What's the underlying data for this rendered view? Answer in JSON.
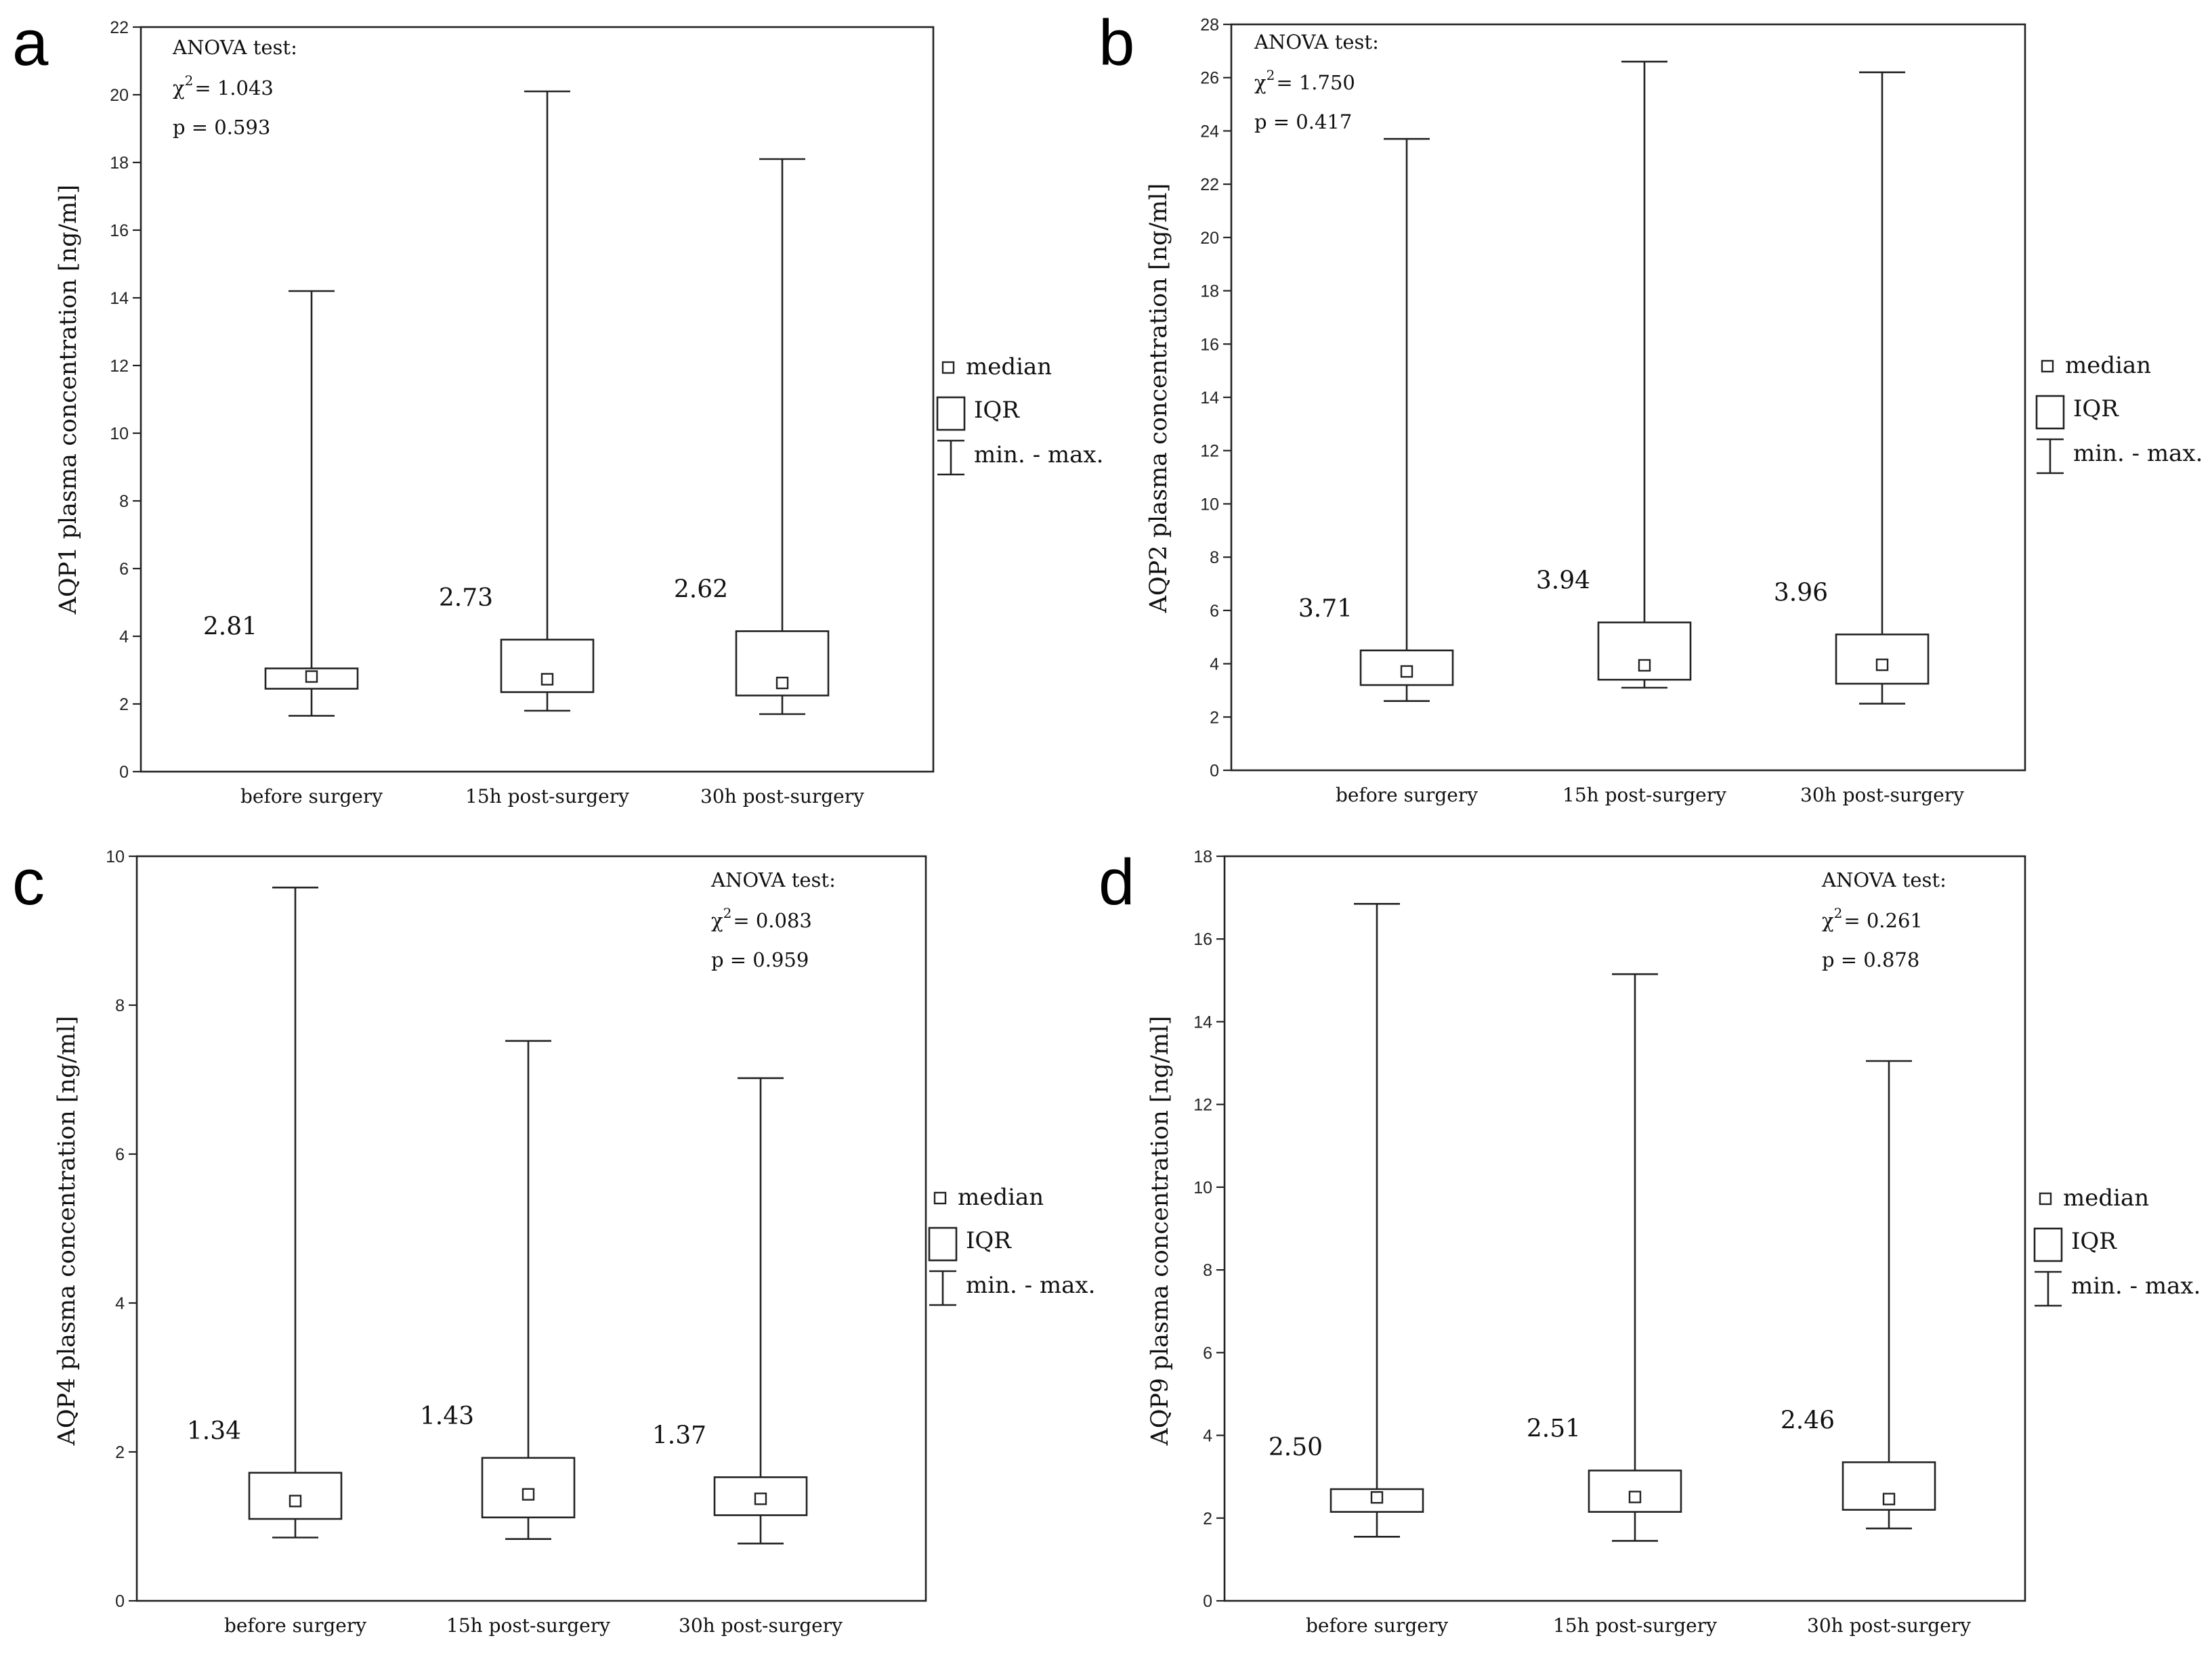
{
  "chart_data": [
    {
      "type": "boxplot",
      "panel": "a",
      "ylabel": "AQP1 plasma concentration [ng/ml]",
      "ylim": [
        0,
        22
      ],
      "yticks": [
        0,
        2,
        4,
        6,
        8,
        10,
        12,
        14,
        16,
        18,
        20,
        22
      ],
      "yticklabels": [
        "0",
        "2",
        "4",
        "6",
        "8",
        "10",
        "12",
        "14",
        "16",
        "18",
        "20",
        "22"
      ],
      "categories": [
        "before surgery",
        "15h post-surgery",
        "30h post-surgery"
      ],
      "stats": {
        "title": "ANOVA test:",
        "chi_prefix": "χ",
        "chi_sup": "2",
        "chi_value": "= 1.043",
        "p": "p = 0.593"
      },
      "median_labels": [
        "2.81",
        "2.73",
        "2.62"
      ],
      "series": [
        {
          "median": 2.81,
          "q1": 2.45,
          "q3": 3.05,
          "min": 1.65,
          "max": 14.2
        },
        {
          "median": 2.73,
          "q1": 2.35,
          "q3": 3.9,
          "min": 1.8,
          "max": 20.1
        },
        {
          "median": 2.62,
          "q1": 2.25,
          "q3": 4.15,
          "min": 1.7,
          "max": 18.1
        }
      ],
      "legend": {
        "median": "median",
        "iqr": "IQR",
        "range": "min. - max."
      }
    },
    {
      "type": "boxplot",
      "panel": "b",
      "ylabel": "AQP2 plasma concentration [ng/ml]",
      "ylim": [
        0,
        28
      ],
      "yticks": [
        0,
        2,
        4,
        6,
        8,
        10,
        12,
        14,
        16,
        18,
        20,
        22,
        24,
        26,
        28
      ],
      "yticklabels": [
        "0",
        "2",
        "4",
        "6",
        "8",
        "10",
        "12",
        "14",
        "16",
        "18",
        "20",
        "22",
        "24",
        "26",
        "28"
      ],
      "categories": [
        "before surgery",
        "15h post-surgery",
        "30h post-surgery"
      ],
      "stats": {
        "title": "ANOVA test:",
        "chi_prefix": "χ",
        "chi_sup": "2",
        "chi_value": "= 1.750",
        "p": "p = 0.417"
      },
      "median_labels": [
        "3.71",
        "3.94",
        "3.96"
      ],
      "series": [
        {
          "median": 3.71,
          "q1": 3.2,
          "q3": 4.5,
          "min": 2.6,
          "max": 23.7
        },
        {
          "median": 3.94,
          "q1": 3.4,
          "q3": 5.55,
          "min": 3.1,
          "max": 26.6
        },
        {
          "median": 3.96,
          "q1": 3.25,
          "q3": 5.1,
          "min": 2.5,
          "max": 26.2
        }
      ],
      "legend": {
        "median": "median",
        "iqr": "IQR",
        "range": "min. - max."
      }
    },
    {
      "type": "boxplot",
      "panel": "c",
      "ylabel": "AQP4 plasma concentration [ng/ml]",
      "ylim": [
        0,
        10
      ],
      "yticks": [
        0,
        2,
        4,
        6,
        8,
        10
      ],
      "yticklabels": [
        "0",
        "2",
        "4",
        "6",
        "8",
        "10"
      ],
      "categories": [
        "before surgery",
        "15h post-surgery",
        "30h post-surgery"
      ],
      "stats": {
        "title": "ANOVA test:",
        "chi_prefix": "χ",
        "chi_sup": "2",
        "chi_value": "= 0.083",
        "p": "p = 0.959"
      },
      "median_labels": [
        "1.34",
        "1.43",
        "1.37"
      ],
      "series": [
        {
          "median": 1.34,
          "q1": 1.1,
          "q3": 1.72,
          "min": 0.85,
          "max": 9.58
        },
        {
          "median": 1.43,
          "q1": 1.12,
          "q3": 1.92,
          "min": 0.83,
          "max": 7.52
        },
        {
          "median": 1.37,
          "q1": 1.15,
          "q3": 1.66,
          "min": 0.77,
          "max": 7.02
        }
      ],
      "legend": {
        "median": "median",
        "iqr": "IQR",
        "range": "min. - max."
      }
    },
    {
      "type": "boxplot",
      "panel": "d",
      "ylabel": "AQP9 plasma concentration [ng/ml]",
      "ylim": [
        0,
        18
      ],
      "yticks": [
        0,
        2,
        4,
        6,
        8,
        10,
        12,
        14,
        16,
        18
      ],
      "yticklabels": [
        "0",
        "2",
        "4",
        "6",
        "8",
        "10",
        "12",
        "14",
        "16",
        "18"
      ],
      "categories": [
        "before surgery",
        "15h post-surgery",
        "30h post-surgery"
      ],
      "stats": {
        "title": "ANOVA test:",
        "chi_prefix": "χ",
        "chi_sup": "2",
        "chi_value": "= 0.261",
        "p": "p = 0.878"
      },
      "median_labels": [
        "2.50",
        "2.51",
        "2.46"
      ],
      "series": [
        {
          "median": 2.5,
          "q1": 2.15,
          "q3": 2.7,
          "min": 1.55,
          "max": 16.85
        },
        {
          "median": 2.51,
          "q1": 2.15,
          "q3": 3.15,
          "min": 1.45,
          "max": 15.15
        },
        {
          "median": 2.46,
          "q1": 2.2,
          "q3": 3.35,
          "min": 1.75,
          "max": 13.05
        }
      ],
      "legend": {
        "median": "median",
        "iqr": "IQR",
        "range": "min. - max."
      }
    }
  ]
}
